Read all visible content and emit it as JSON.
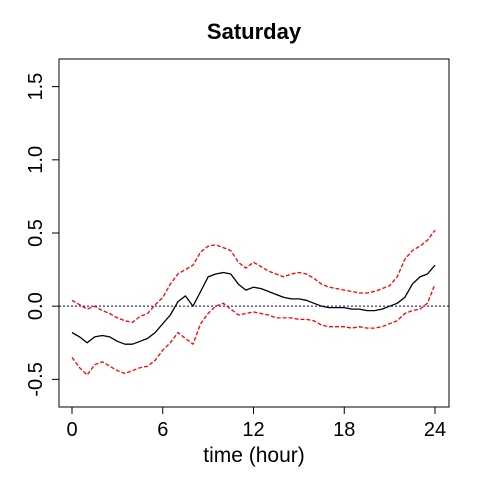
{
  "chart_data": {
    "type": "line",
    "title": "Saturday",
    "xlabel": "time (hour)",
    "ylabel": "",
    "xlim": [
      0,
      24
    ],
    "ylim": [
      -0.6,
      1.6
    ],
    "xticks": [
      0,
      6,
      12,
      18,
      24
    ],
    "xtick_labels": [
      "0",
      "6",
      "12",
      "18",
      "24"
    ],
    "yticks": [
      -0.5,
      0.0,
      0.5,
      1.0,
      1.5
    ],
    "ytick_labels": [
      "-0.5",
      "0.0",
      "0.5",
      "1.0",
      "1.5"
    ],
    "grid": false,
    "reference_line": {
      "y": 0,
      "color": "#00008b",
      "style": "dotted"
    },
    "series": [
      {
        "role": "estimate",
        "color": "#000000",
        "style": "solid",
        "x": [
          0,
          0.5,
          1,
          1.5,
          2,
          2.5,
          3,
          3.5,
          4,
          4.5,
          5,
          5.5,
          6,
          6.5,
          7,
          7.5,
          8,
          8.5,
          9,
          9.5,
          10,
          10.5,
          11,
          11.5,
          12,
          12.5,
          13,
          13.5,
          14,
          14.5,
          15,
          15.5,
          16,
          16.5,
          17,
          17.5,
          18,
          18.5,
          19,
          19.5,
          20,
          20.5,
          21,
          21.5,
          22,
          22.5,
          23,
          23.5,
          24
        ],
        "y": [
          -0.18,
          -0.21,
          -0.25,
          -0.21,
          -0.2,
          -0.21,
          -0.24,
          -0.26,
          -0.26,
          -0.24,
          -0.22,
          -0.18,
          -0.12,
          -0.06,
          0.03,
          0.07,
          0.0,
          0.1,
          0.2,
          0.22,
          0.23,
          0.22,
          0.15,
          0.11,
          0.13,
          0.12,
          0.1,
          0.08,
          0.06,
          0.05,
          0.05,
          0.04,
          0.02,
          0.0,
          -0.01,
          -0.01,
          -0.01,
          -0.02,
          -0.02,
          -0.03,
          -0.03,
          -0.02,
          0.0,
          0.02,
          0.06,
          0.15,
          0.2,
          0.22,
          0.28
        ]
      },
      {
        "role": "upper bound",
        "color": "#ff0000",
        "style": "dashed",
        "x": [
          0,
          0.5,
          1,
          1.5,
          2,
          2.5,
          3,
          3.5,
          4,
          4.5,
          5,
          5.5,
          6,
          6.5,
          7,
          7.5,
          8,
          8.5,
          9,
          9.5,
          10,
          10.5,
          11,
          11.5,
          12,
          12.5,
          13,
          13.5,
          14,
          14.5,
          15,
          15.5,
          16,
          16.5,
          17,
          17.5,
          18,
          18.5,
          19,
          19.5,
          20,
          20.5,
          21,
          21.5,
          22,
          22.5,
          23,
          23.5,
          24
        ],
        "y": [
          0.04,
          0.01,
          -0.02,
          0.0,
          -0.03,
          -0.05,
          -0.08,
          -0.1,
          -0.11,
          -0.07,
          -0.05,
          0.01,
          0.06,
          0.15,
          0.22,
          0.25,
          0.28,
          0.37,
          0.41,
          0.42,
          0.4,
          0.38,
          0.3,
          0.26,
          0.3,
          0.27,
          0.24,
          0.22,
          0.2,
          0.22,
          0.23,
          0.22,
          0.19,
          0.15,
          0.13,
          0.12,
          0.11,
          0.1,
          0.09,
          0.09,
          0.1,
          0.12,
          0.14,
          0.2,
          0.32,
          0.38,
          0.41,
          0.45,
          0.52
        ]
      },
      {
        "role": "lower bound",
        "color": "#ff0000",
        "style": "dashed",
        "x": [
          0,
          0.5,
          1,
          1.5,
          2,
          2.5,
          3,
          3.5,
          4,
          4.5,
          5,
          5.5,
          6,
          6.5,
          7,
          7.5,
          8,
          8.5,
          9,
          9.5,
          10,
          10.5,
          11,
          11.5,
          12,
          12.5,
          13,
          13.5,
          14,
          14.5,
          15,
          15.5,
          16,
          16.5,
          17,
          17.5,
          18,
          18.5,
          19,
          19.5,
          20,
          20.5,
          21,
          21.5,
          22,
          22.5,
          23,
          23.5,
          24
        ],
        "y": [
          -0.35,
          -0.42,
          -0.47,
          -0.4,
          -0.38,
          -0.41,
          -0.44,
          -0.46,
          -0.44,
          -0.42,
          -0.41,
          -0.37,
          -0.3,
          -0.25,
          -0.18,
          -0.22,
          -0.26,
          -0.12,
          -0.05,
          0.0,
          0.02,
          -0.02,
          -0.06,
          -0.05,
          -0.04,
          -0.05,
          -0.06,
          -0.08,
          -0.08,
          -0.08,
          -0.09,
          -0.09,
          -0.1,
          -0.13,
          -0.14,
          -0.14,
          -0.14,
          -0.15,
          -0.14,
          -0.15,
          -0.15,
          -0.14,
          -0.12,
          -0.1,
          -0.05,
          -0.03,
          -0.02,
          0.02,
          0.15
        ]
      }
    ]
  }
}
